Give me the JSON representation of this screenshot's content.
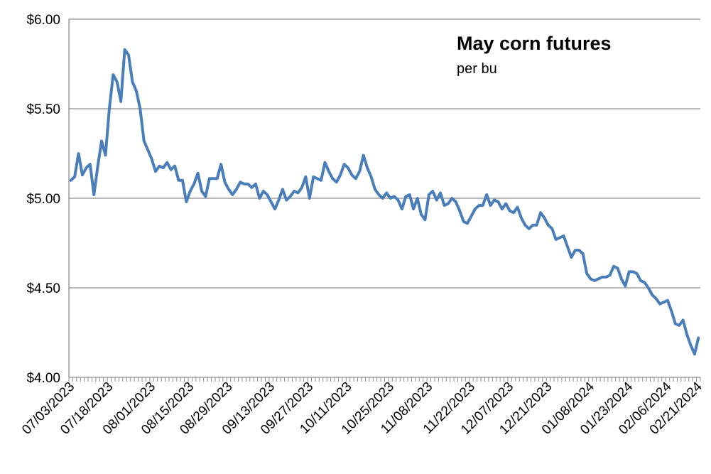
{
  "chart_data": {
    "type": "line",
    "title": "May corn futures",
    "subtitle": "per bu",
    "ylim": [
      4.0,
      6.0
    ],
    "y_ticks": [
      "$4.00",
      "$4.50",
      "$5.00",
      "$5.50",
      "$6.00"
    ],
    "y_tick_values": [
      4.0,
      4.5,
      5.0,
      5.5,
      6.0
    ],
    "x_tick_labels": [
      "07/03/2023",
      "07/18/2023",
      "08/01/2023",
      "08/15/2023",
      "08/29/2023",
      "09/13/2023",
      "09/27/2023",
      "10/11/2023",
      "10/25/2023",
      "11/08/2023",
      "11/22/2023",
      "12/07/2023",
      "12/21/2023",
      "01/08/2024",
      "01/23/2024",
      "02/06/2024",
      "02/21/2024"
    ],
    "grid": true,
    "legend": "none",
    "line_color": "#4a7ebb",
    "series": [
      {
        "values": [
          5.1,
          5.12,
          5.25,
          5.13,
          5.17,
          5.19,
          5.02,
          5.18,
          5.32,
          5.24,
          5.5,
          5.69,
          5.65,
          5.54,
          5.83,
          5.8,
          5.65,
          5.6,
          5.5,
          5.32,
          5.27,
          5.22,
          5.15,
          5.18,
          5.17,
          5.2,
          5.16,
          5.18,
          5.1,
          5.1,
          4.98,
          5.04,
          5.08,
          5.14,
          5.04,
          5.01,
          5.11,
          5.11,
          5.11,
          5.19,
          5.09,
          5.05,
          5.02,
          5.05,
          5.09,
          5.08,
          5.08,
          5.06,
          5.08,
          5.0,
          5.04,
          5.02,
          4.98,
          4.94,
          4.99,
          5.05,
          4.99,
          5.01,
          5.04,
          5.03,
          5.06,
          5.12,
          5.0,
          5.12,
          5.11,
          5.1,
          5.2,
          5.15,
          5.11,
          5.09,
          5.13,
          5.19,
          5.17,
          5.13,
          5.11,
          5.15,
          5.24,
          5.17,
          5.12,
          5.05,
          5.02,
          5.0,
          5.03,
          5.0,
          5.01,
          4.99,
          4.94,
          5.01,
          5.02,
          4.94,
          5.0,
          4.91,
          4.88,
          5.02,
          5.04,
          4.99,
          5.03,
          4.96,
          4.97,
          5.0,
          4.98,
          4.93,
          4.87,
          4.86,
          4.9,
          4.94,
          4.96,
          4.96,
          5.02,
          4.96,
          4.99,
          4.98,
          4.94,
          4.97,
          4.93,
          4.92,
          4.95,
          4.89,
          4.85,
          4.83,
          4.85,
          4.85,
          4.92,
          4.89,
          4.85,
          4.83,
          4.77,
          4.78,
          4.79,
          4.73,
          4.67,
          4.71,
          4.71,
          4.69,
          4.58,
          4.55,
          4.54,
          4.55,
          4.56,
          4.56,
          4.57,
          4.62,
          4.61,
          4.55,
          4.51,
          4.59,
          4.59,
          4.58,
          4.54,
          4.53,
          4.5,
          4.46,
          4.44,
          4.41,
          4.42,
          4.43,
          4.37,
          4.3,
          4.29,
          4.32,
          4.24,
          4.18,
          4.13,
          4.22
        ]
      }
    ]
  }
}
